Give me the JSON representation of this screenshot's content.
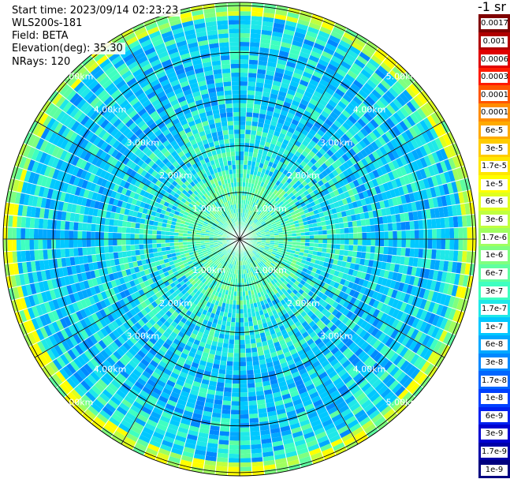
{
  "info": {
    "start_time": "Start time: 2023/09/14 02:23:23",
    "station": "WLS200s-181",
    "field": "Field: BETA",
    "elevation": "Elevation(deg): 35.30",
    "nrays": "NRays: 120"
  },
  "colorbar": {
    "unit": "-1 sr",
    "ticks": [
      "0.0017",
      "0.001",
      "0.0006",
      "0.0003",
      "0.00017",
      "0.0001",
      "6e-5",
      "3e-5",
      "1.7e-5",
      "1e-5",
      "6e-6",
      "3e-6",
      "1.7e-6",
      "1e-6",
      "6e-7",
      "3e-7",
      "1.7e-7",
      "1e-7",
      "6e-8",
      "3e-8",
      "1.7e-8",
      "1e-8",
      "6e-9",
      "3e-9",
      "1.7e-9",
      "1e-9"
    ],
    "colors": [
      "#7f0000",
      "#b00000",
      "#e00000",
      "#ff1a00",
      "#ff5500",
      "#ff8c00",
      "#ffaa00",
      "#ffcc00",
      "#ffe600",
      "#ffff00",
      "#e0ff1f",
      "#c0ff3f",
      "#9fff5f",
      "#7fff7f",
      "#5fffa0",
      "#3fffc0",
      "#1fe8e8",
      "#00c8ff",
      "#00a8ff",
      "#0088ff",
      "#0066ff",
      "#0040ff",
      "#0020f0",
      "#0000d0",
      "#0000a8",
      "#00007f"
    ]
  },
  "chart_data": {
    "type": "heatmap",
    "projection": "polar PPI",
    "n_rays": 120,
    "range_rings_km": [
      "1.00km",
      "2.00km",
      "3.00km",
      "4.00km",
      "5.00km"
    ],
    "azimuth_spokes_deg": [
      0,
      30,
      60,
      90,
      120,
      150,
      180,
      210,
      240,
      270,
      300,
      330
    ],
    "grid": true,
    "colormap_scale": "log",
    "features": {
      "strong_ring_range_km": 5.0,
      "strong_ring_value": "1e-5",
      "inner_value": "6e-7",
      "outer_value": "1e-8"
    }
  }
}
